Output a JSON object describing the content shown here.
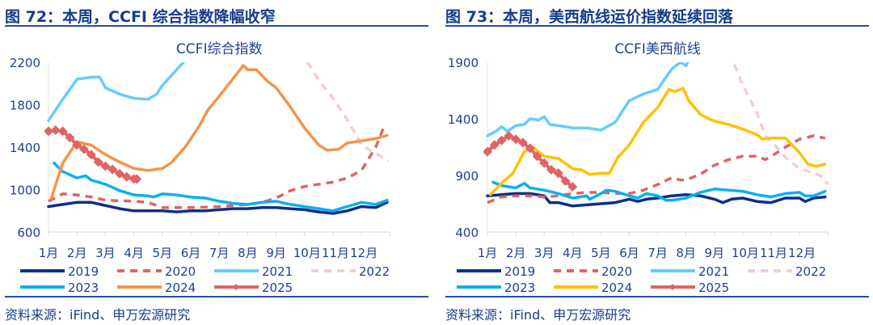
{
  "panels": [
    {
      "header": "图 72：本周，CCFI 综合指数降幅收窄",
      "source": "资料来源：iFind、申万宏源研究"
    },
    {
      "header": "图 73：本周，美西航线运价指数延续回落",
      "source": "资料来源：iFind、申万宏源研究"
    }
  ],
  "chart_data": [
    {
      "type": "line",
      "title": "CCFI综合指数",
      "xlabel": "",
      "ylabel": "",
      "x_ticks": [
        "1月",
        "2月",
        "3月",
        "4月",
        "5月",
        "6月",
        "7月",
        "8月",
        "9月",
        "10月",
        "11月",
        "12月"
      ],
      "y_ticks": [
        600,
        1000,
        1400,
        1800,
        2200
      ],
      "ylim": [
        600,
        2200
      ],
      "grid": false,
      "legend": "bottom",
      "series": [
        {
          "name": "2019",
          "color": "#0d2f8a",
          "style": "solid",
          "x": [
            1,
            1.5,
            2,
            2.5,
            3,
            3.5,
            4,
            4.5,
            5,
            5.5,
            6,
            6.5,
            7,
            7.5,
            8,
            8.5,
            9,
            9.5,
            10,
            10.5,
            11,
            11.5,
            12,
            12.5,
            12.9
          ],
          "y": [
            840,
            860,
            880,
            880,
            850,
            820,
            800,
            800,
            800,
            790,
            800,
            800,
            810,
            820,
            820,
            830,
            830,
            820,
            810,
            790,
            775,
            800,
            840,
            830,
            880
          ]
        },
        {
          "name": "2020",
          "color": "#e06464",
          "style": "dashed",
          "x": [
            1,
            1.5,
            2,
            2.5,
            3,
            3.5,
            4,
            4.5,
            5,
            5.5,
            6,
            6.5,
            7,
            7.5,
            8,
            8.5,
            9,
            9.5,
            10,
            10.5,
            11,
            11.5,
            12,
            12.5,
            12.8
          ],
          "y": [
            890,
            960,
            950,
            930,
            900,
            895,
            890,
            880,
            830,
            830,
            830,
            835,
            840,
            850,
            860,
            880,
            920,
            990,
            1030,
            1050,
            1070,
            1110,
            1180,
            1400,
            1600
          ]
        },
        {
          "name": "2021",
          "color": "#66ccff",
          "style": "solid",
          "x": [
            1,
            1.5,
            2,
            2.5,
            2.8,
            3,
            3.5,
            4,
            4.5,
            4.8,
            5,
            5.5,
            5.75
          ],
          "y": [
            1650,
            1850,
            2040,
            2060,
            2060,
            1960,
            1900,
            1860,
            1850,
            1900,
            1980,
            2130,
            2200
          ]
        },
        {
          "name": "2022",
          "color": "#f8cccc",
          "style": "dashed",
          "x": [
            10.1,
            10.5,
            11,
            11.5,
            12,
            12.5,
            12.95
          ],
          "y": [
            2200,
            2030,
            1860,
            1660,
            1420,
            1340,
            1270
          ]
        },
        {
          "name": "2023",
          "color": "#0bb0ee",
          "style": "solid",
          "x": [
            1.2,
            1.5,
            2,
            2.3,
            2.5,
            3,
            3.5,
            4,
            4.5,
            4.7,
            5,
            5.5,
            6,
            6.5,
            7,
            7.5,
            8,
            8.5,
            9,
            9.5,
            10,
            10.5,
            11,
            11.5,
            12,
            12.5,
            12.9
          ],
          "y": [
            1250,
            1170,
            1110,
            1130,
            1090,
            1050,
            990,
            950,
            940,
            930,
            960,
            950,
            930,
            920,
            890,
            870,
            860,
            880,
            890,
            860,
            840,
            820,
            800,
            840,
            880,
            860,
            900
          ]
        },
        {
          "name": "2024",
          "color": "#f4944a",
          "style": "solid",
          "x": [
            1.1,
            1.5,
            2,
            2.5,
            3,
            3.5,
            4,
            4.5,
            5,
            5.3,
            5.8,
            6.3,
            6.6,
            7,
            7.5,
            7.85,
            8,
            8.3,
            8.7,
            9,
            9.5,
            10,
            10.5,
            10.8,
            11.2,
            11.5,
            12,
            12.5,
            12.9
          ],
          "y": [
            920,
            1250,
            1450,
            1420,
            1330,
            1260,
            1200,
            1180,
            1200,
            1250,
            1400,
            1600,
            1750,
            1880,
            2050,
            2170,
            2130,
            2130,
            2020,
            1960,
            1780,
            1580,
            1420,
            1370,
            1380,
            1440,
            1460,
            1480,
            1510
          ]
        },
        {
          "name": "2025",
          "color": "#e06464",
          "style": "marker",
          "x": [
            1,
            1.25,
            1.5,
            1.75,
            2,
            2.25,
            2.5,
            2.75,
            3,
            3.25,
            3.5,
            3.75,
            4,
            4.1
          ],
          "y": [
            1550,
            1560,
            1550,
            1490,
            1420,
            1380,
            1330,
            1260,
            1220,
            1190,
            1150,
            1120,
            1100,
            1100
          ]
        }
      ]
    },
    {
      "type": "line",
      "title": "CCFI美西航线",
      "xlabel": "",
      "ylabel": "",
      "x_ticks": [
        "1月",
        "2月",
        "3月",
        "4月",
        "5月",
        "6月",
        "7月",
        "8月",
        "9月",
        "10月",
        "11月",
        "12月"
      ],
      "y_ticks": [
        400,
        900,
        1400,
        1900
      ],
      "ylim": [
        400,
        1900
      ],
      "grid": false,
      "legend": "bottom",
      "series": [
        {
          "name": "2019",
          "color": "#0d2f8a",
          "style": "solid",
          "x": [
            1,
            1.5,
            2,
            2.5,
            3,
            3.2,
            3.5,
            4,
            4.5,
            5,
            5.5,
            6,
            6.3,
            6.6,
            7,
            7.5,
            8,
            8.5,
            9,
            9.3,
            9.6,
            10,
            10.5,
            11,
            11.5,
            12,
            12.2,
            12.5,
            12.9
          ],
          "y": [
            720,
            730,
            740,
            740,
            720,
            660,
            660,
            630,
            640,
            650,
            660,
            690,
            670,
            690,
            700,
            720,
            730,
            720,
            690,
            660,
            690,
            700,
            670,
            660,
            700,
            700,
            670,
            700,
            710
          ]
        },
        {
          "name": "2020",
          "color": "#e06464",
          "style": "dashed",
          "x": [
            1,
            1.5,
            2,
            2.5,
            3,
            3.5,
            4,
            4.5,
            5,
            5.5,
            6,
            6.5,
            7,
            7.5,
            7.8,
            8,
            8.5,
            9,
            9.5,
            10,
            10.5,
            10.8,
            11.2,
            11.5,
            12,
            12.5,
            12.9
          ],
          "y": [
            660,
            710,
            720,
            720,
            710,
            720,
            740,
            750,
            750,
            740,
            740,
            770,
            820,
            880,
            860,
            860,
            910,
            990,
            1040,
            1070,
            1070,
            1040,
            1100,
            1150,
            1220,
            1250,
            1230
          ]
        },
        {
          "name": "2021",
          "color": "#66ccff",
          "style": "solid",
          "x": [
            1,
            1.3,
            1.5,
            1.7,
            2,
            2.3,
            2.5,
            2.8,
            3,
            3.2,
            3.5,
            4,
            4.5,
            5,
            5.5,
            6,
            6.5,
            7,
            7.3,
            7.5,
            7.8,
            8,
            8.1
          ],
          "y": [
            1250,
            1290,
            1330,
            1290,
            1340,
            1350,
            1400,
            1390,
            1420,
            1350,
            1340,
            1320,
            1320,
            1300,
            1370,
            1560,
            1620,
            1660,
            1770,
            1840,
            1900,
            1870,
            1920
          ]
        },
        {
          "name": "2022",
          "color": "#f8cccc",
          "style": "dashed",
          "x": [
            9.7,
            10,
            10.5,
            10.8,
            11.2,
            11.5,
            12,
            12.5,
            12.8,
            13
          ],
          "y": [
            1880,
            1700,
            1450,
            1250,
            1150,
            1060,
            960,
            920,
            890,
            820
          ]
        },
        {
          "name": "2023",
          "color": "#0bb0ee",
          "style": "solid",
          "x": [
            1.2,
            1.5,
            2,
            2.3,
            2.5,
            3,
            3.5,
            4,
            4.5,
            4.6,
            5,
            5.2,
            5.5,
            6,
            6.3,
            6.6,
            7,
            7.3,
            7.5,
            8,
            8.5,
            9,
            9.5,
            10,
            10.5,
            11,
            11.5,
            12,
            12.2,
            12.5,
            12.9
          ],
          "y": [
            840,
            810,
            790,
            830,
            790,
            770,
            740,
            700,
            720,
            690,
            740,
            770,
            760,
            720,
            700,
            740,
            720,
            680,
            680,
            700,
            750,
            780,
            770,
            760,
            730,
            710,
            740,
            750,
            720,
            720,
            760
          ]
        },
        {
          "name": "2024",
          "color": "#ffc000",
          "style": "solid",
          "x": [
            1.1,
            1.5,
            1.9,
            2.3,
            2.6,
            3,
            3.5,
            4,
            4.3,
            4.6,
            5,
            5.3,
            5.6,
            6,
            6.5,
            7,
            7.4,
            7.6,
            7.9,
            8.1,
            8.5,
            8.8,
            9,
            9.5,
            10,
            10.5,
            10.7,
            11,
            11.5,
            12,
            12.3,
            12.6,
            12.9
          ],
          "y": [
            730,
            830,
            920,
            1110,
            1150,
            1070,
            1050,
            960,
            950,
            910,
            920,
            920,
            1060,
            1170,
            1370,
            1500,
            1660,
            1640,
            1670,
            1560,
            1440,
            1400,
            1380,
            1350,
            1310,
            1260,
            1220,
            1230,
            1230,
            1100,
            1000,
            980,
            1000
          ]
        },
        {
          "name": "2025",
          "color": "#e06464",
          "style": "marker",
          "x": [
            1,
            1.25,
            1.5,
            1.75,
            2,
            2.25,
            2.5,
            2.75,
            3,
            3.25,
            3.5,
            3.75,
            4
          ],
          "y": [
            1110,
            1170,
            1210,
            1250,
            1220,
            1190,
            1140,
            1070,
            1010,
            950,
            920,
            850,
            800
          ]
        }
      ]
    }
  ]
}
